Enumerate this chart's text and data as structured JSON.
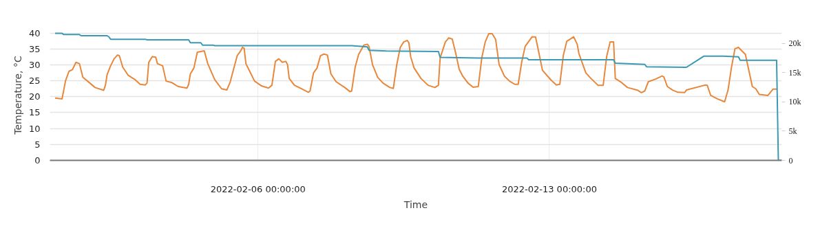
{
  "chart_data": {
    "type": "line",
    "xlabel": "Time",
    "ylabel": "Temperature, °C",
    "xlim": [
      "2022-02-01T00:00",
      "2022-02-18T14:00"
    ],
    "xticks": [
      {
        "value": "2022-02-06T00:00",
        "label": "2022-02-06 00:00:00"
      },
      {
        "value": "2022-02-13T00:00",
        "label": "2022-02-13 00:00:00"
      }
    ],
    "ylim": [
      0,
      41
    ],
    "yticks": [
      0,
      5,
      10,
      15,
      20,
      25,
      30,
      35,
      40
    ],
    "y2lim": [
      0,
      22300
    ],
    "y2ticks": [
      0,
      {
        "value": 5000,
        "label": "5k"
      },
      {
        "value": 10000,
        "label": "10k"
      },
      {
        "value": 15000,
        "label": "15k"
      },
      {
        "value": 20000,
        "label": "20k"
      }
    ],
    "grid": true,
    "marker": "none",
    "line_style": "solid",
    "series": [
      {
        "color": "#e8873a",
        "x": [
          "2022-02-01T03:00",
          "2022-02-01T07:00",
          "2022-02-01T09:00",
          "2022-02-01T11:00",
          "2022-02-01T13:00",
          "2022-02-01T15:00",
          "2022-02-01T17:00",
          "2022-02-01T19:00",
          "2022-02-01T23:00",
          "2022-02-02T02:00",
          "2022-02-02T07:00",
          "2022-02-02T08:00",
          "2022-02-02T09:00",
          "2022-02-02T11:00",
          "2022-02-02T13:00",
          "2022-02-02T15:00",
          "2022-02-02T16:00",
          "2022-02-02T18:00",
          "2022-02-02T21:00",
          "2022-02-03T01:00",
          "2022-02-03T04:00",
          "2022-02-03T07:00",
          "2022-02-03T08:00",
          "2022-02-03T09:00",
          "2022-02-03T11:00",
          "2022-02-03T13:00",
          "2022-02-03T14:00",
          "2022-02-03T17:00",
          "2022-02-03T19:00",
          "2022-02-03T22:00",
          "2022-02-04T02:00",
          "2022-02-04T07:00",
          "2022-02-04T08:00",
          "2022-02-04T09:00",
          "2022-02-04T11:00",
          "2022-02-04T13:00",
          "2022-02-04T17:00",
          "2022-02-04T19:00",
          "2022-02-04T23:00",
          "2022-02-05T03:00",
          "2022-02-05T06:00",
          "2022-02-05T08:00",
          "2022-02-05T09:00",
          "2022-02-05T12:00",
          "2022-02-05T14:00",
          "2022-02-05T15:00",
          "2022-02-05T16:00",
          "2022-02-05T17:00",
          "2022-02-05T18:00",
          "2022-02-05T22:00",
          "2022-02-06T02:00",
          "2022-02-06T06:00",
          "2022-02-06T08:00",
          "2022-02-06T10:00",
          "2022-02-06T12:00",
          "2022-02-06T14:00",
          "2022-02-06T16:00",
          "2022-02-06T17:00",
          "2022-02-06T18:00",
          "2022-02-06T21:00",
          "2022-02-07T01:00",
          "2022-02-07T05:00",
          "2022-02-07T06:00",
          "2022-02-07T08:00",
          "2022-02-07T10:00",
          "2022-02-07T12:00",
          "2022-02-07T14:00",
          "2022-02-07T16:00",
          "2022-02-07T18:00",
          "2022-02-07T21:00",
          "2022-02-08T02:00",
          "2022-02-08T05:00",
          "2022-02-08T06:00",
          "2022-02-08T08:00",
          "2022-02-08T10:00",
          "2022-02-08T13:00",
          "2022-02-08T15:00",
          "2022-02-08T16:00",
          "2022-02-08T18:00",
          "2022-02-08T21:00",
          "2022-02-09T00:00",
          "2022-02-09T04:00",
          "2022-02-09T06:00",
          "2022-02-09T08:00",
          "2022-02-09T10:00",
          "2022-02-09T12:00",
          "2022-02-09T14:00",
          "2022-02-09T15:00",
          "2022-02-09T16:00",
          "2022-02-09T18:00",
          "2022-02-09T22:00",
          "2022-02-10T02:00",
          "2022-02-10T06:00",
          "2022-02-10T08:00",
          "2022-02-10T09:00",
          "2022-02-10T12:00",
          "2022-02-10T14:00",
          "2022-02-10T16:00",
          "2022-02-10T18:00",
          "2022-02-10T20:00",
          "2022-02-10T22:00",
          "2022-02-11T01:00",
          "2022-02-11T04:00",
          "2022-02-11T07:00",
          "2022-02-11T09:00",
          "2022-02-11T11:00",
          "2022-02-11T13:00",
          "2022-02-11T15:00",
          "2022-02-11T17:00",
          "2022-02-11T19:00",
          "2022-02-11T22:00",
          "2022-02-12T01:00",
          "2022-02-12T04:00",
          "2022-02-12T06:00",
          "2022-02-12T08:00",
          "2022-02-12T10:00",
          "2022-02-12T14:00",
          "2022-02-12T16:00",
          "2022-02-12T18:00",
          "2022-02-12T20:00",
          "2022-02-13T01:00",
          "2022-02-13T04:00",
          "2022-02-13T06:00",
          "2022-02-13T08:00",
          "2022-02-13T10:00",
          "2022-02-13T14:00",
          "2022-02-13T16:00",
          "2022-02-13T17:00",
          "2022-02-13T21:00",
          "2022-02-14T00:00",
          "2022-02-14T04:00",
          "2022-02-14T07:00",
          "2022-02-14T09:00",
          "2022-02-14T11:00",
          "2022-02-14T13:00",
          "2022-02-14T14:00",
          "2022-02-14T17:00",
          "2022-02-14T21:00",
          "2022-02-15T03:00",
          "2022-02-15T05:00",
          "2022-02-15T07:00",
          "2022-02-15T09:00",
          "2022-02-15T13:00",
          "2022-02-15T17:00",
          "2022-02-15T18:00",
          "2022-02-15T20:00",
          "2022-02-15T23:00",
          "2022-02-16T02:00",
          "2022-02-16T06:00",
          "2022-02-16T07:00",
          "2022-02-16T18:00",
          "2022-02-16T19:00",
          "2022-02-16T21:00",
          "2022-02-17T01:00",
          "2022-02-17T05:00",
          "2022-02-17T07:00",
          "2022-02-17T09:00",
          "2022-02-17T11:00",
          "2022-02-17T13:00",
          "2022-02-17T17:00",
          "2022-02-17T21:00",
          "2022-02-17T23:00",
          "2022-02-18T01:00",
          "2022-02-18T06:00",
          "2022-02-18T09:00",
          "2022-02-18T11:00"
        ],
        "values": [
          19.6,
          19.3,
          25.0,
          28.0,
          28.5,
          30.8,
          30.4,
          26.1,
          24.3,
          22.9,
          22.0,
          23.6,
          27.0,
          29.7,
          31.9,
          33.1,
          32.9,
          29.3,
          26.8,
          25.4,
          23.9,
          23.7,
          24.3,
          30.8,
          32.6,
          32.4,
          30.4,
          29.7,
          24.9,
          24.5,
          23.2,
          22.7,
          23.9,
          27.2,
          29.0,
          34.0,
          34.4,
          30.4,
          25.4,
          22.5,
          22.1,
          24.7,
          26.8,
          32.9,
          34.4,
          35.5,
          35.2,
          30.4,
          29.3,
          24.9,
          23.4,
          22.7,
          23.6,
          31.1,
          31.9,
          30.8,
          31.1,
          30.1,
          25.7,
          23.6,
          22.5,
          21.4,
          21.8,
          27.5,
          29.0,
          32.9,
          33.4,
          33.1,
          27.2,
          24.7,
          22.9,
          21.6,
          21.8,
          29.3,
          33.3,
          36.2,
          36.5,
          35.8,
          30.1,
          26.1,
          24.3,
          22.9,
          22.6,
          30.1,
          35.5,
          37.2,
          37.7,
          36.9,
          32.6,
          29.0,
          25.7,
          23.6,
          22.9,
          23.6,
          32.2,
          37.2,
          38.5,
          38.1,
          33.6,
          28.6,
          26.5,
          24.3,
          23.0,
          23.2,
          32.2,
          37.2,
          39.8,
          39.8,
          38.0,
          30.1,
          26.5,
          24.9,
          23.9,
          23.9,
          30.8,
          35.8,
          38.8,
          38.8,
          33.6,
          28.3,
          25.2,
          23.7,
          23.9,
          32.9,
          37.4,
          38.8,
          36.5,
          33.6,
          27.5,
          25.7,
          23.6,
          23.6,
          32.6,
          37.2,
          37.2,
          25.7,
          24.7,
          22.9,
          22.0,
          21.3,
          21.8,
          24.7,
          25.5,
          26.5,
          26.2,
          23.2,
          22.1,
          21.4,
          21.3,
          22.1,
          23.7,
          23.6,
          20.4,
          19.3,
          18.4,
          22.1,
          29.3,
          35.1,
          35.5,
          33.3,
          23.2,
          22.5,
          20.7,
          20.4,
          22.4,
          22.4
        ]
      },
      {
        "color": "#3a9ab3",
        "axis": "y2",
        "x": [
          "2022-02-01T03:00",
          "2022-02-01T07:00",
          "2022-02-01T08:00",
          "2022-02-01T17:00",
          "2022-02-01T18:00",
          "2022-02-02T09:00",
          "2022-02-02T10:00",
          "2022-02-02T11:00",
          "2022-02-03T07:00",
          "2022-02-03T08:00",
          "2022-02-03T22:00",
          "2022-02-04T08:00",
          "2022-02-04T09:00",
          "2022-02-04T15:00",
          "2022-02-04T16:00",
          "2022-02-04T22:00",
          "2022-02-04T23:00",
          "2022-02-08T06:00",
          "2022-02-08T15:00",
          "2022-02-08T16:00",
          "2022-02-09T02:00",
          "2022-02-10T08:00",
          "2022-02-10T09:00",
          "2022-02-11T07:00",
          "2022-02-12T11:00",
          "2022-02-12T12:00",
          "2022-02-14T13:00",
          "2022-02-14T14:00",
          "2022-02-15T07:00",
          "2022-02-15T08:00",
          "2022-02-16T07:00",
          "2022-02-16T17:00",
          "2022-02-17T04:00",
          "2022-02-17T13:00",
          "2022-02-17T14:00",
          "2022-02-18T03:00",
          "2022-02-18T11:00",
          "2022-02-18T12:00",
          "2022-02-18T14:00"
        ],
        "values": [
          21700,
          21700,
          21500,
          21500,
          21300,
          21300,
          21100,
          20700,
          20700,
          20600,
          20600,
          20600,
          20100,
          20100,
          19700,
          19700,
          19600,
          19600,
          19400,
          18800,
          18700,
          18600,
          17600,
          17500,
          17500,
          17200,
          17200,
          16600,
          16400,
          16000,
          15900,
          17800,
          17800,
          17700,
          17100,
          17100,
          17100,
          0,
          0
        ]
      }
    ]
  }
}
